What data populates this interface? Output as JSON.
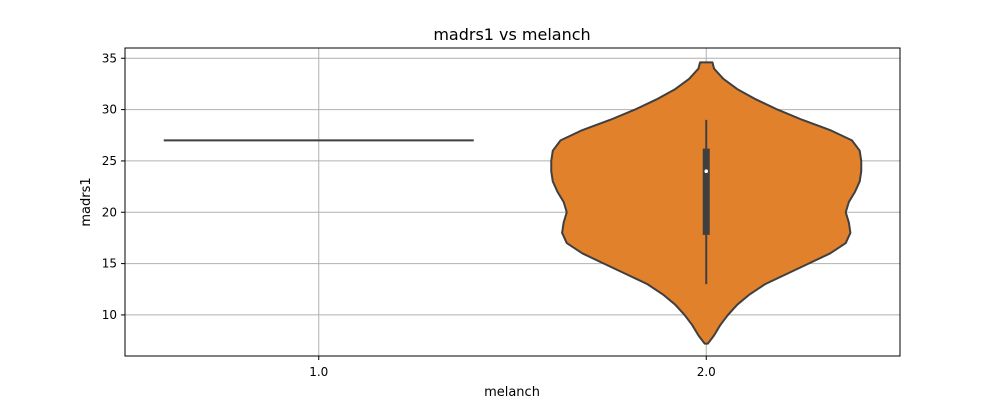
{
  "chart_data": {
    "type": "violin",
    "title": "madrs1 vs melanch",
    "xlabel": "melanch",
    "ylabel": "madrs1",
    "categories": [
      "1.0",
      "2.0"
    ],
    "ylim": [
      6,
      36
    ],
    "yticks": [
      10,
      15,
      20,
      25,
      30,
      35
    ],
    "grid": true,
    "fill_color": "#e1812c",
    "edge_color": "#3f3f3f",
    "series": [
      {
        "category": "1.0",
        "kind": "single-value",
        "value": 27
      },
      {
        "category": "2.0",
        "kind": "density",
        "min": 7.2,
        "max": 34.6,
        "box": {
          "q1": 17.8,
          "median": 24.0,
          "q3": 26.2,
          "whisker_low": 13.0,
          "whisker_high": 29.0
        },
        "density_profile": [
          [
            7.2,
            0.01
          ],
          [
            8,
            0.05
          ],
          [
            9,
            0.09
          ],
          [
            10,
            0.14
          ],
          [
            11,
            0.2
          ],
          [
            12,
            0.28
          ],
          [
            13,
            0.38
          ],
          [
            14,
            0.52
          ],
          [
            15,
            0.66
          ],
          [
            16,
            0.8
          ],
          [
            17,
            0.9
          ],
          [
            18,
            0.93
          ],
          [
            19,
            0.92
          ],
          [
            20,
            0.9
          ],
          [
            21,
            0.92
          ],
          [
            22,
            0.96
          ],
          [
            23,
            0.99
          ],
          [
            24,
            1.0
          ],
          [
            25,
            1.0
          ],
          [
            26,
            0.99
          ],
          [
            27,
            0.94
          ],
          [
            28,
            0.8
          ],
          [
            29,
            0.62
          ],
          [
            30,
            0.46
          ],
          [
            31,
            0.32
          ],
          [
            32,
            0.2
          ],
          [
            33,
            0.11
          ],
          [
            34,
            0.05
          ],
          [
            34.6,
            0.04
          ]
        ]
      }
    ]
  }
}
